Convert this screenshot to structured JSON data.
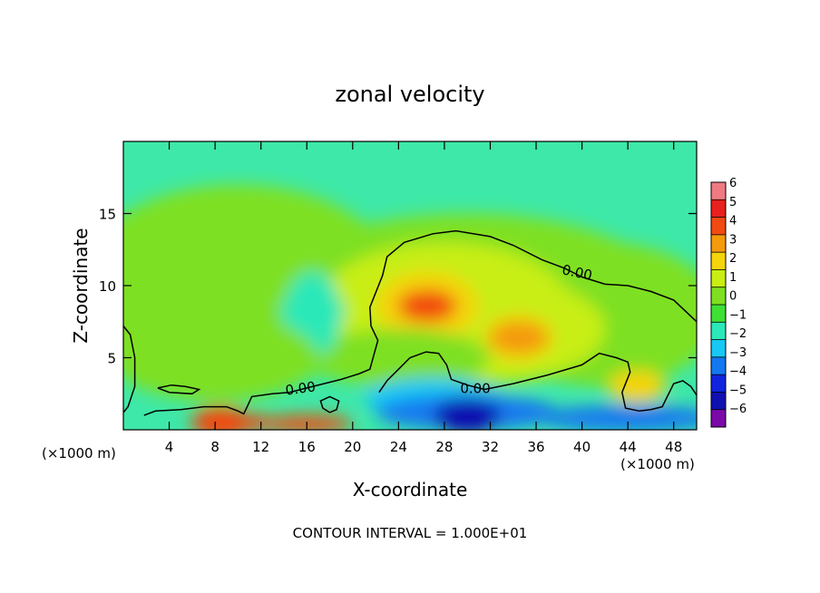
{
  "chart_data": {
    "type": "heatmap",
    "title": "zonal velocity",
    "xlabel": "X-coordinate",
    "ylabel": "Z-coordinate",
    "x_unit_label": "(×1000 m)",
    "x_unit_label_right": "(×1000 m)",
    "xlim": [
      0,
      50
    ],
    "ylim": [
      0,
      20
    ],
    "x_ticks": [
      4,
      8,
      12,
      16,
      20,
      24,
      28,
      32,
      36,
      40,
      44,
      48
    ],
    "y_ticks": [
      5,
      10,
      15
    ],
    "contour_interval_text": "CONTOUR INTERVAL = 1.000E+01",
    "contour_label": "0.00",
    "colorbar": {
      "levels": [
        6,
        5,
        4,
        3,
        2,
        1,
        0,
        -1,
        -2,
        -3,
        -4,
        -5,
        -6
      ],
      "colors": [
        "#f07a82",
        "#e8201e",
        "#f24a10",
        "#f49a0c",
        "#f4d40a",
        "#c8ee14",
        "#7ee020",
        "#3ee034",
        "#2ce8b8",
        "#18c8f4",
        "#1478f0",
        "#1024e0",
        "#1010b0",
        "#7a0aa8"
      ]
    },
    "features": [
      {
        "kind": "max",
        "x": 26.5,
        "z": 8.6,
        "value": 4.2
      },
      {
        "kind": "max",
        "x": 34.5,
        "z": 6.4,
        "value": 3.0
      },
      {
        "kind": "max",
        "x": 44.8,
        "z": 3.0,
        "value": 2.8
      },
      {
        "kind": "min",
        "x": 16.5,
        "z": 8.2,
        "value": -2.0
      },
      {
        "kind": "min",
        "x": 30.0,
        "z": 1.0,
        "value": -5.5
      },
      {
        "kind": "max",
        "x": 8.5,
        "z": 0.5,
        "value": 4.5
      }
    ]
  }
}
